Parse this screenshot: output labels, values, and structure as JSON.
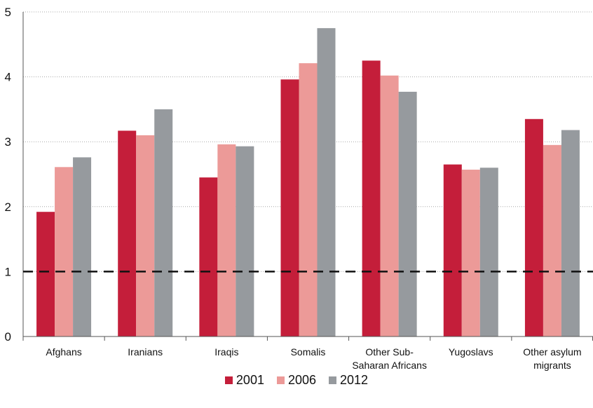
{
  "chart_data": {
    "type": "bar",
    "title": "",
    "xlabel": "",
    "ylabel": "",
    "ylim": [
      0,
      5
    ],
    "yticks": [
      "0",
      "1",
      "2",
      "3",
      "4",
      "5"
    ],
    "grid": true,
    "legend_position": "bottom",
    "categories": [
      [
        "Afghans"
      ],
      [
        "Iranians"
      ],
      [
        "Iraqis"
      ],
      [
        "Somalis"
      ],
      [
        "Other Sub-",
        "Saharan Africans"
      ],
      [
        "Yugoslavs"
      ],
      [
        "Other asylum",
        "migrants"
      ]
    ],
    "series": [
      {
        "name": "2001",
        "color": "#c41e3a",
        "values": [
          1.92,
          3.17,
          2.45,
          3.96,
          4.25,
          2.65,
          3.35
        ]
      },
      {
        "name": "2006",
        "color": "#ec9a98",
        "values": [
          2.61,
          3.1,
          2.96,
          4.21,
          4.02,
          2.57,
          2.95
        ]
      },
      {
        "name": "2012",
        "color": "#969a9e",
        "values": [
          2.76,
          3.5,
          2.93,
          4.75,
          3.77,
          2.6,
          3.18
        ]
      }
    ],
    "reference_line": {
      "value": 1,
      "style": "dashed",
      "color": "#111111"
    }
  }
}
